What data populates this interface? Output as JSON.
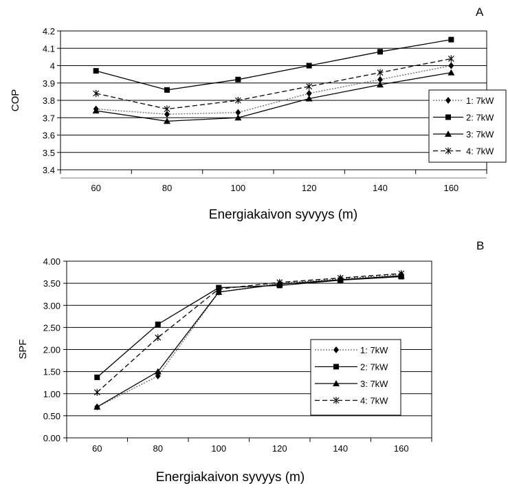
{
  "chart_data": [
    {
      "type": "line",
      "panel_label": "A",
      "xlabel": "Energiakaivon syvyys (m)",
      "ylabel": "COP",
      "categories": [
        60,
        80,
        100,
        120,
        140,
        160
      ],
      "y_ticks": [
        "3.4",
        "3.5",
        "3.6",
        "3.7",
        "3.8",
        "3.9",
        "4",
        "4.1",
        "4.2"
      ],
      "ylim": [
        3.4,
        4.2
      ],
      "grid": "horizontal",
      "legend_position": "right",
      "series": [
        {
          "name": "1: 7kW",
          "marker": "diamond",
          "dash": "dotted",
          "values": [
            3.75,
            3.72,
            3.73,
            3.84,
            3.92,
            4.0
          ]
        },
        {
          "name": "2: 7kW",
          "marker": "square",
          "dash": "solid",
          "values": [
            3.97,
            3.86,
            3.92,
            4.0,
            4.08,
            4.15
          ]
        },
        {
          "name": "3: 7kW",
          "marker": "triangle",
          "dash": "solid",
          "values": [
            3.74,
            3.68,
            3.7,
            3.81,
            3.89,
            3.96
          ]
        },
        {
          "name": "4: 7kW",
          "marker": "star",
          "dash": "dashed",
          "values": [
            3.84,
            3.75,
            3.8,
            3.88,
            3.96,
            4.04
          ]
        }
      ]
    },
    {
      "type": "line",
      "panel_label": "B",
      "xlabel": "Energiakaivon syvyys (m)",
      "ylabel": "SPF",
      "categories": [
        60,
        80,
        100,
        120,
        140,
        160
      ],
      "y_ticks": [
        "0.00",
        "0.50",
        "1.00",
        "1.50",
        "2.00",
        "2.50",
        "3.00",
        "3.50",
        "4.00"
      ],
      "ylim": [
        0,
        4
      ],
      "grid": "horizontal",
      "legend_position": "inside-right",
      "series": [
        {
          "name": "1: 7kW",
          "marker": "diamond",
          "dash": "dotted",
          "values": [
            0.7,
            1.4,
            3.3,
            3.5,
            3.6,
            3.7
          ]
        },
        {
          "name": "2: 7kW",
          "marker": "square",
          "dash": "solid",
          "values": [
            1.37,
            2.57,
            3.4,
            3.45,
            3.57,
            3.65
          ]
        },
        {
          "name": "3: 7kW",
          "marker": "triangle",
          "dash": "solid",
          "values": [
            0.7,
            1.5,
            3.3,
            3.48,
            3.58,
            3.67
          ]
        },
        {
          "name": "4: 7kW",
          "marker": "star",
          "dash": "dashed",
          "values": [
            1.03,
            2.27,
            3.37,
            3.52,
            3.62,
            3.72
          ]
        }
      ]
    }
  ]
}
